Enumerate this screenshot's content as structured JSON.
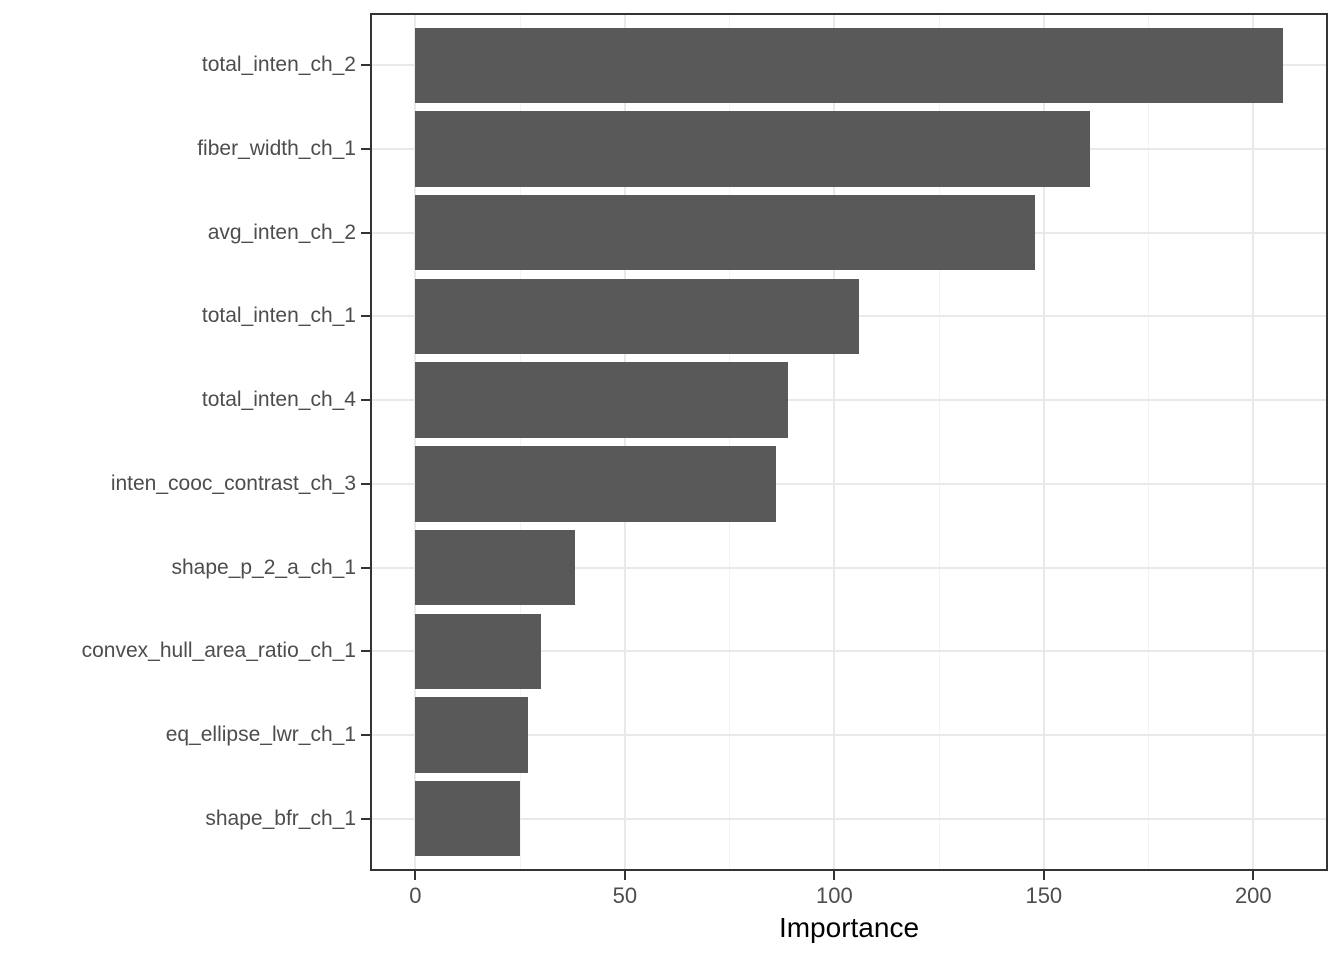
{
  "chart_data": {
    "type": "bar",
    "orientation": "horizontal",
    "title": "",
    "xlabel": "Importance",
    "ylabel": "",
    "categories": [
      "total_inten_ch_2",
      "fiber_width_ch_1",
      "avg_inten_ch_2",
      "total_inten_ch_1",
      "total_inten_ch_4",
      "inten_cooc_contrast_ch_3",
      "shape_p_2_a_ch_1",
      "convex_hull_area_ratio_ch_1",
      "eq_ellipse_lwr_ch_1",
      "shape_bfr_ch_1"
    ],
    "values": [
      207,
      161,
      148,
      106,
      89,
      86,
      38,
      30,
      27,
      25
    ],
    "xlim": [
      0,
      218
    ],
    "xticks": [
      0,
      50,
      100,
      150,
      200
    ],
    "xminor": [
      25,
      75,
      125,
      175
    ],
    "grid": {
      "vertical_major": true,
      "vertical_minor": true,
      "horizontal_major": true,
      "horizontal_minor": false
    },
    "legend": "none",
    "colors": {
      "bar_fill": "#595959",
      "panel_border": "#333333",
      "tick": "#333333",
      "grid_major": "#E9E9E9",
      "grid_minor": "#F3F3F3",
      "axis_text": "#4D4D4D",
      "axis_title": "#000000",
      "background": "#FFFFFF"
    }
  }
}
